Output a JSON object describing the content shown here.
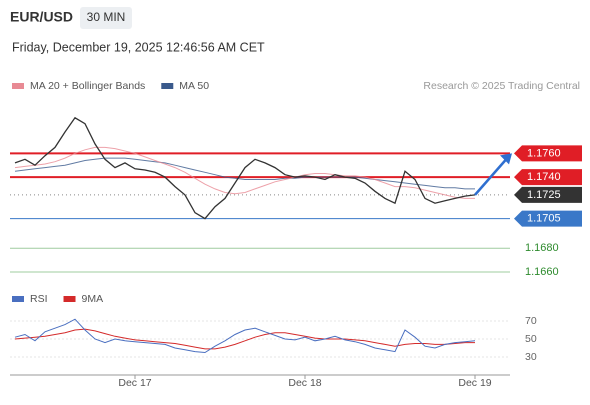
{
  "header": {
    "symbol": "EUR/USD",
    "interval": "30 MIN",
    "timestamp": "Friday, December 19, 2025 12:46:56 AM CET",
    "credit": "Research © 2025 Trading Central"
  },
  "chart_data": [
    {
      "type": "line",
      "series": [
        {
          "color": "#333333",
          "values": [
            1.1752,
            1.1755,
            1.175,
            1.1758,
            1.1765,
            1.1778,
            1.179,
            1.1785,
            1.1768,
            1.1755,
            1.1748,
            1.1752,
            1.1747,
            1.1746,
            1.1744,
            1.174,
            1.1732,
            1.1725,
            1.171,
            1.1705,
            1.1715,
            1.1722,
            1.1735,
            1.1748,
            1.1755,
            1.1752,
            1.1748,
            1.1742,
            1.174,
            1.1741,
            1.174,
            1.1738,
            1.1742,
            1.174,
            1.1739,
            1.1735,
            1.1728,
            1.1722,
            1.1718,
            1.1745,
            1.1738,
            1.1722,
            1.1718,
            1.172,
            1.1722,
            1.1724,
            1.1725,
            null,
            null,
            null
          ]
        },
        {
          "name": "MA 20 + Bollinger Bands",
          "color": "#e88a94",
          "values": [
            1.1748,
            1.1749,
            1.175,
            1.1751,
            1.1753,
            1.1756,
            1.176,
            1.1763,
            1.1765,
            1.1765,
            1.1764,
            1.1762,
            1.176,
            1.1757,
            1.1754,
            1.1751,
            1.1748,
            1.1744,
            1.1739,
            1.1734,
            1.173,
            1.1727,
            1.1726,
            1.1727,
            1.173,
            1.1733,
            1.1736,
            1.1738,
            1.174,
            1.1742,
            1.1743,
            1.1743,
            1.1742,
            1.1741,
            1.1741,
            1.174,
            1.1738,
            1.1735,
            1.1732,
            1.1732,
            1.1731,
            1.1729,
            1.1727,
            1.1725,
            1.1723,
            1.1722,
            1.1722,
            null,
            null,
            null
          ]
        },
        {
          "name": "MA 50",
          "color": "#3a5a8c",
          "values": [
            1.1745,
            1.1746,
            1.1747,
            1.1748,
            1.1749,
            1.175,
            1.1752,
            1.1754,
            1.1755,
            1.1756,
            1.1756,
            1.1756,
            1.1755,
            1.1754,
            1.1753,
            1.1752,
            1.175,
            1.1748,
            1.1746,
            1.1744,
            1.1742,
            1.174,
            1.1739,
            1.1738,
            1.1738,
            1.1738,
            1.1738,
            1.1739,
            1.1739,
            1.174,
            1.174,
            1.174,
            1.174,
            1.174,
            1.174,
            1.1739,
            1.1738,
            1.1737,
            1.1736,
            1.1735,
            1.1734,
            1.1733,
            1.1732,
            1.1731,
            1.1731,
            1.173,
            1.173,
            null,
            null,
            null
          ]
        }
      ],
      "ylim": [
        1.1649,
        1.1805
      ],
      "levels": [
        {
          "value": 1.176,
          "label": "1.1760",
          "color": "#e01e26",
          "kind": "resistance"
        },
        {
          "value": 1.174,
          "label": "1.1740",
          "color": "#e01e26",
          "kind": "resistance"
        },
        {
          "value": 1.1725,
          "label": "1.1725",
          "color": "#333333",
          "kind": "current"
        },
        {
          "value": 1.1705,
          "label": "1.1705",
          "color": "#3a78c8",
          "kind": "support"
        },
        {
          "value": 1.168,
          "label": "1.1680",
          "color": "#2e8b2e",
          "kind": "target"
        },
        {
          "value": 1.166,
          "label": "1.1660",
          "color": "#2e8b2e",
          "kind": "target"
        }
      ]
    },
    {
      "type": "line",
      "categories": [
        null,
        null,
        null,
        null,
        null,
        null,
        null,
        null,
        null,
        null,
        null,
        null,
        "Dec 17",
        null,
        null,
        null,
        null,
        null,
        null,
        null,
        null,
        null,
        null,
        null,
        null,
        null,
        null,
        null,
        null,
        "Dec 18",
        null,
        null,
        null,
        null,
        null,
        null,
        null,
        null,
        null,
        null,
        null,
        null,
        null,
        null,
        null,
        null,
        "Dec 19",
        null,
        null,
        null
      ],
      "series": [
        {
          "name": "RSI",
          "color": "#4a6fc0",
          "values": [
            52,
            55,
            48,
            58,
            62,
            66,
            72,
            60,
            50,
            46,
            50,
            48,
            47,
            46,
            45,
            44,
            40,
            38,
            36,
            35,
            42,
            48,
            55,
            60,
            62,
            58,
            54,
            50,
            49,
            52,
            48,
            50,
            53,
            49,
            47,
            44,
            40,
            38,
            36,
            60,
            52,
            42,
            40,
            44,
            46,
            47,
            48,
            null,
            null,
            null
          ]
        },
        {
          "name": "9MA",
          "color": "#d42a2a",
          "values": [
            50,
            51,
            52,
            53,
            55,
            57,
            60,
            61,
            59,
            56,
            53,
            51,
            49,
            48,
            47,
            46,
            45,
            43,
            41,
            39,
            39,
            41,
            44,
            48,
            52,
            55,
            57,
            57,
            55,
            53,
            51,
            50,
            50,
            50,
            49,
            48,
            46,
            44,
            42,
            44,
            45,
            45,
            44,
            44,
            45,
            46,
            46,
            null,
            null,
            null
          ]
        }
      ],
      "ylim": [
        15.6,
        82.2
      ],
      "yticks": [
        70,
        50,
        30
      ]
    }
  ]
}
